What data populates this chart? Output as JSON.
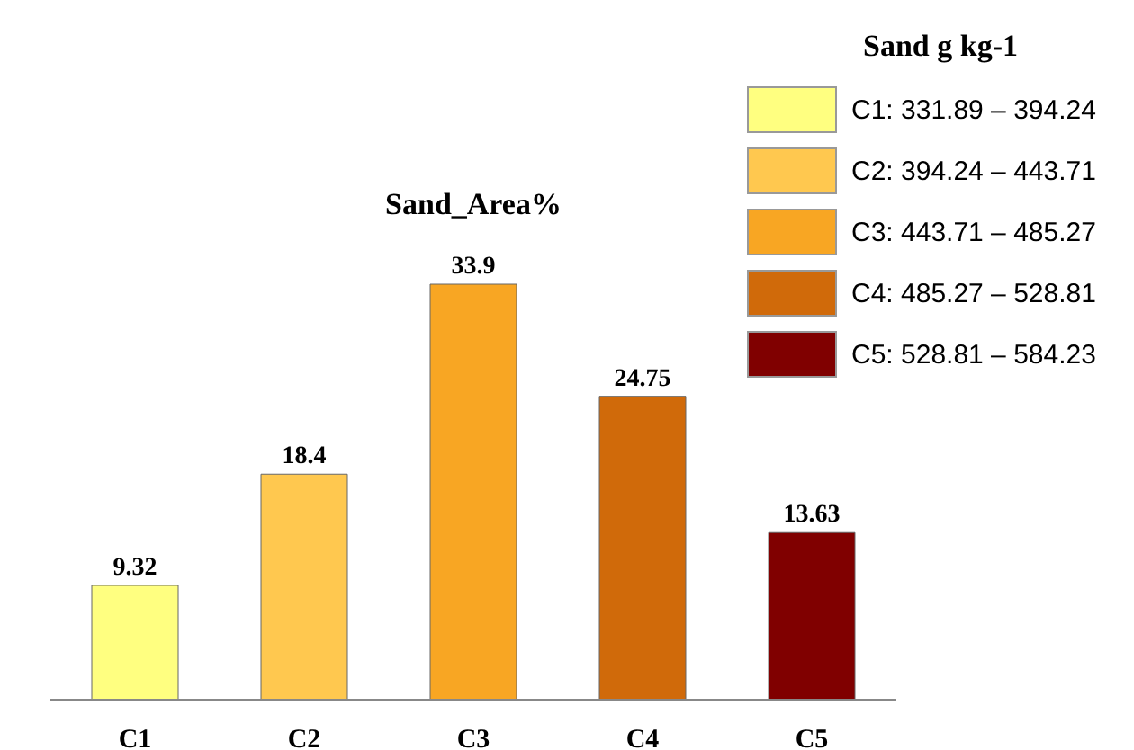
{
  "chart_data": {
    "type": "bar",
    "title": "Sand_Area%",
    "legend_title": "Sand g kg-1",
    "categories": [
      "C1",
      "C2",
      "C3",
      "C4",
      "C5"
    ],
    "stacked": true,
    "series": [
      {
        "name": "C1: 331.89 – 394.24",
        "color": "#ffff80",
        "values": [
          9.32,
          null,
          null,
          null,
          null
        ]
      },
      {
        "name": "C2: 394.24 – 443.71",
        "color": "#ffc84f",
        "values": [
          null,
          18.4,
          null,
          null,
          null
        ]
      },
      {
        "name": "C3: 443.71 – 485.27",
        "color": "#f8a623",
        "values": [
          null,
          null,
          33.9,
          null,
          null
        ]
      },
      {
        "name": "C4: 485.27 – 528.81",
        "color": "#d06a0a",
        "values": [
          null,
          null,
          null,
          24.75,
          null
        ]
      },
      {
        "name": "C5: 528.81 – 584.23",
        "color": "#800000",
        "values": [
          null,
          null,
          null,
          null,
          13.63
        ]
      }
    ],
    "data_labels": true,
    "grid": false,
    "legend": "top right"
  }
}
